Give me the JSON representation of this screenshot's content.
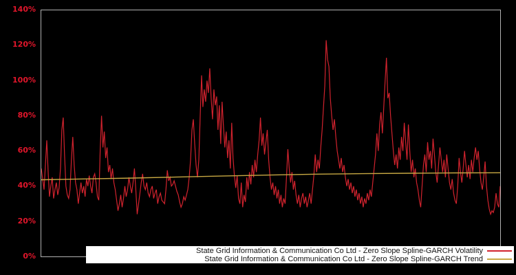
{
  "figure": {
    "background_color": "#000000",
    "plot_border_color": "#b3b3b3"
  },
  "y_axis": {
    "tick_labels": [
      "0%",
      "20%",
      "40%",
      "60%",
      "80%",
      "100%",
      "120%",
      "140%"
    ],
    "tick_values": [
      0,
      20,
      40,
      60,
      80,
      100,
      120,
      140
    ],
    "label_color": "#e0162b"
  },
  "legend": {
    "background": "#ffffff",
    "items": [
      {
        "label": "State Grid Information & Communication Co Ltd - Zero Slope Spline-GARCH Volatility",
        "color": "#d2232e"
      },
      {
        "label": "State Grid Information & Communication Co Ltd - Zero Slope Spline-GARCH Trend",
        "color": "#c7a843"
      }
    ]
  },
  "chart_data": {
    "type": "line",
    "title": "",
    "xlabel": "",
    "ylabel": "",
    "y_unit": "%",
    "ylim": [
      0,
      140
    ],
    "grid": false,
    "x_axis_labels_visible": false,
    "legend_position": "bottom-inside",
    "series": [
      {
        "name": "State Grid Information & Communication Co Ltd - Zero Slope Spline-GARCH Volatility",
        "color": "#d2232e",
        "stroke_width": 1.2,
        "values": [
          50,
          44,
          38,
          52,
          66,
          48,
          34,
          40,
          45,
          33,
          38,
          42,
          35,
          39,
          50,
          72,
          79,
          58,
          40,
          35,
          33,
          38,
          55,
          68,
          52,
          42,
          38,
          30,
          36,
          42,
          36,
          40,
          34,
          44,
          40,
          46,
          40,
          36,
          45,
          47,
          42,
          34,
          32,
          60,
          80,
          62,
          71,
          56,
          62,
          48,
          52,
          44,
          50,
          42,
          38,
          32,
          26,
          30,
          35,
          28,
          33,
          40,
          34,
          38,
          45,
          40,
          36,
          42,
          50,
          38,
          24,
          30,
          36,
          42,
          47,
          40,
          38,
          42,
          36,
          34,
          38,
          40,
          33,
          36,
          38,
          30,
          34,
          36,
          32,
          31,
          30,
          38,
          49,
          43,
          45,
          40,
          41,
          43,
          40,
          37,
          35,
          31,
          28,
          30,
          34,
          32,
          35,
          38,
          45,
          55,
          72,
          78,
          64,
          52,
          45,
          55,
          80,
          103,
          85,
          95,
          88,
          100,
          93,
          107,
          90,
          78,
          95,
          86,
          91,
          72,
          86,
          64,
          88,
          74,
          62,
          71,
          56,
          66,
          50,
          76,
          56,
          46,
          39,
          46,
          33,
          30,
          42,
          28,
          35,
          31,
          45,
          38,
          48,
          41,
          52,
          45,
          55,
          48,
          58,
          66,
          79,
          63,
          70,
          58,
          65,
          72,
          55,
          45,
          38,
          42,
          35,
          40,
          33,
          38,
          30,
          35,
          28,
          33,
          30,
          45,
          61,
          50,
          42,
          48,
          38,
          43,
          35,
          30,
          35,
          28,
          33,
          36,
          30,
          34,
          28,
          32,
          36,
          30,
          38,
          46,
          58,
          48,
          55,
          50,
          62,
          72,
          85,
          97,
          123,
          112,
          108,
          90,
          80,
          72,
          78,
          68,
          60,
          55,
          50,
          56,
          48,
          52,
          45,
          40,
          44,
          38,
          42,
          36,
          40,
          34,
          38,
          32,
          36,
          30,
          34,
          28,
          33,
          30,
          36,
          32,
          38,
          34,
          42,
          50,
          58,
          70,
          60,
          75,
          82,
          70,
          85,
          100,
          113,
          90,
          93,
          80,
          70,
          60,
          52,
          58,
          50,
          62,
          55,
          68,
          60,
          76,
          65,
          55,
          75,
          60,
          48,
          55,
          45,
          50,
          42,
          38,
          32,
          28,
          40,
          52,
          58,
          48,
          65,
          55,
          60,
          50,
          67,
          58,
          48,
          42,
          52,
          62,
          55,
          48,
          55,
          45,
          58,
          50,
          42,
          38,
          44,
          36,
          32,
          30,
          40,
          56,
          48,
          42,
          50,
          60,
          52,
          45,
          52,
          44,
          55,
          48,
          56,
          62,
          55,
          60,
          50,
          42,
          38,
          45,
          54,
          40,
          32,
          27,
          24,
          26,
          25,
          28,
          36,
          30,
          28,
          40
        ]
      },
      {
        "name": "State Grid Information & Communication Co Ltd - Zero Slope Spline-GARCH Trend",
        "color": "#c7a843",
        "stroke_width": 1.4,
        "values": [
          43.6,
          44.1,
          44.6,
          45.2,
          45.8,
          46.3,
          46.8,
          47.1,
          47.3,
          47.5,
          47.6
        ]
      }
    ]
  }
}
